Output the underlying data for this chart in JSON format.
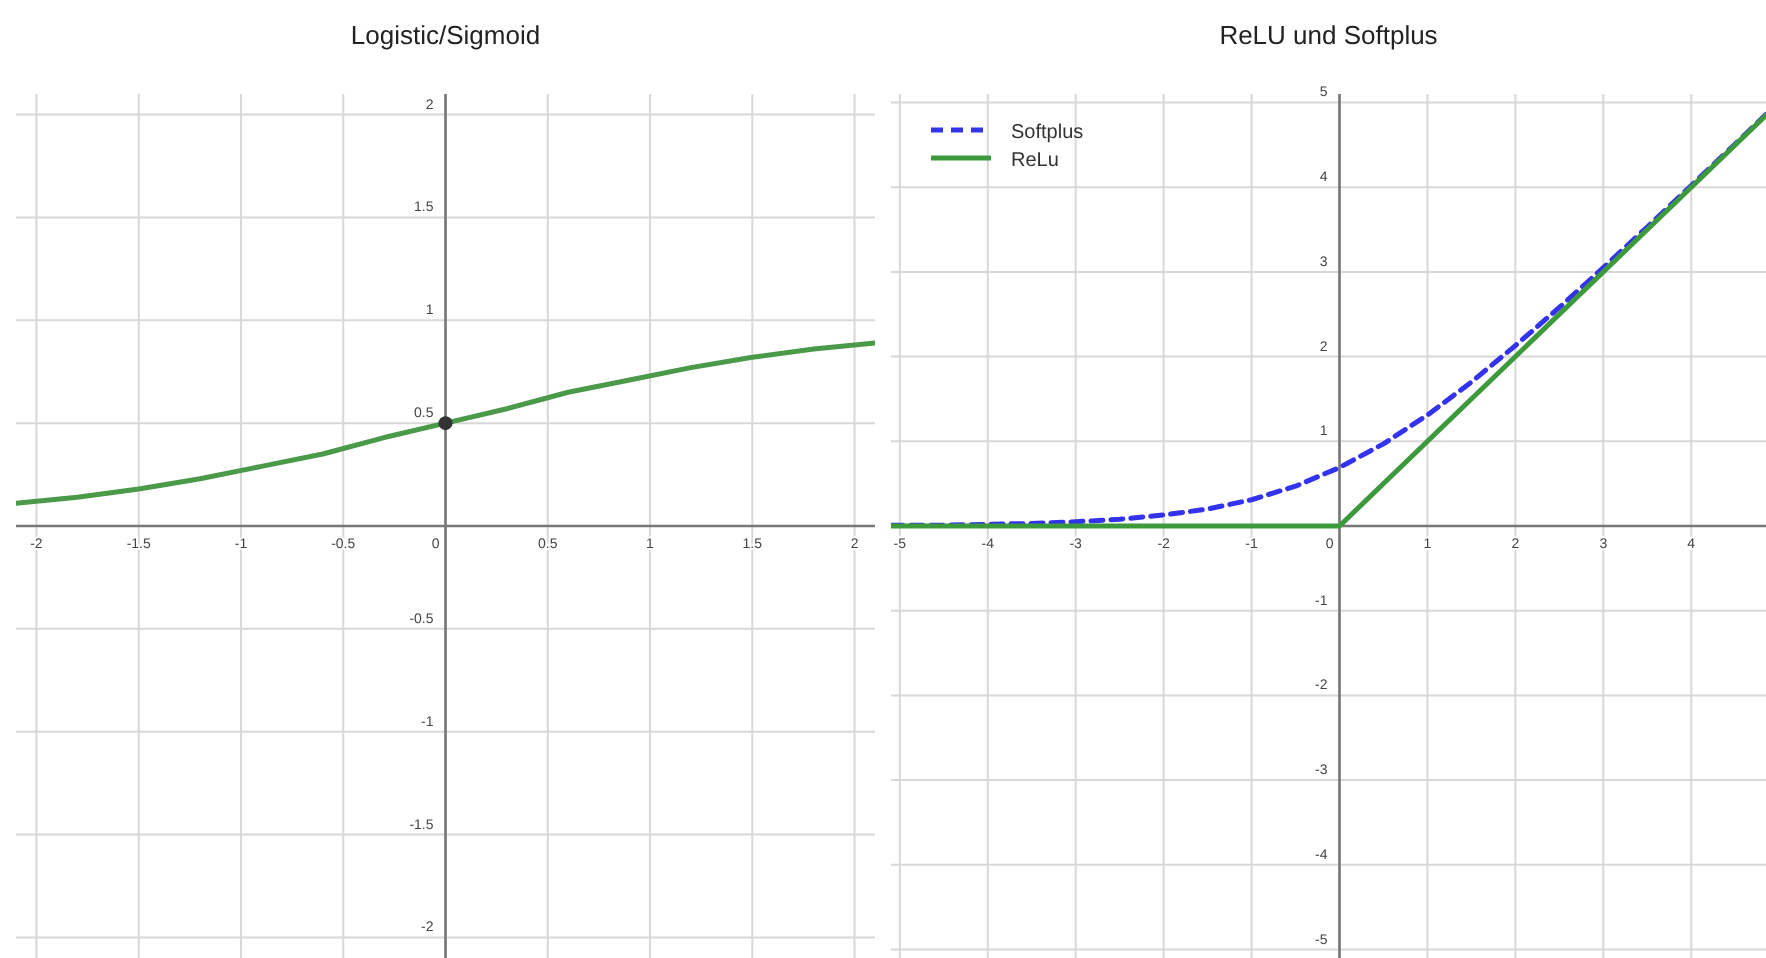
{
  "chart_data": [
    {
      "type": "line",
      "title": "Logistic/Sigmoid",
      "xlim": [
        -2.1,
        2.1
      ],
      "ylim": [
        -2.1,
        2.1
      ],
      "xticks": [
        -2,
        -1.5,
        -1,
        -0.5,
        0,
        0.5,
        1,
        1.5,
        2
      ],
      "yticks": [
        -2,
        -1.5,
        -1,
        -0.5,
        {
          "value": 0,
          "label": null
        },
        0.5,
        1,
        1.5,
        2
      ],
      "grid": true,
      "legend": false,
      "x": [
        -2.1,
        -1.8,
        -1.5,
        -1.2,
        -0.9,
        -0.6,
        -0.3,
        0,
        0.3,
        0.6,
        0.9,
        1.2,
        1.5,
        1.8,
        2.1
      ],
      "series": [
        {
          "color": "#4a9a4a",
          "values": [
            0.11,
            0.14,
            0.18,
            0.23,
            0.29,
            0.35,
            0.43,
            0.5,
            0.57,
            0.65,
            0.71,
            0.77,
            0.82,
            0.86,
            0.89
          ]
        },
        {
          "type": "scatter",
          "color": "#333333",
          "x": [
            0
          ],
          "values": [
            0.5
          ],
          "marker": "circle"
        }
      ]
    },
    {
      "type": "line",
      "title": "ReLU und Softplus",
      "xlim": [
        -5.1,
        4.85
      ],
      "ylim": [
        -5.1,
        5.1
      ],
      "xticks": [
        -5,
        -4,
        -3,
        -2,
        -1,
        0,
        1,
        2,
        3,
        4
      ],
      "yticks": [
        -5,
        -4,
        -3,
        -2,
        -1,
        {
          "value": 0,
          "label": null
        },
        1,
        2,
        3,
        4,
        5
      ],
      "grid": true,
      "legend": "top left",
      "series": [
        {
          "name": "Softplus",
          "color": "#3333ee",
          "line_style": "dashed",
          "x": [
            -5.1,
            -4.5,
            -4,
            -3.5,
            -3,
            -2.5,
            -2,
            -1.5,
            -1,
            -0.5,
            0,
            0.5,
            1,
            1.5,
            2,
            2.5,
            3,
            3.5,
            4,
            4.5,
            4.85
          ],
          "values": [
            0.01,
            0.01,
            0.02,
            0.03,
            0.05,
            0.08,
            0.13,
            0.2,
            0.31,
            0.47,
            0.69,
            0.97,
            1.31,
            1.7,
            2.13,
            2.58,
            3.05,
            3.53,
            4.02,
            4.51,
            4.86
          ]
        },
        {
          "name": "ReLu",
          "color": "#3c9a3c",
          "line_style": "solid",
          "x": [
            -5.1,
            0,
            4.85
          ],
          "values": [
            0,
            0,
            4.85
          ]
        }
      ]
    }
  ]
}
